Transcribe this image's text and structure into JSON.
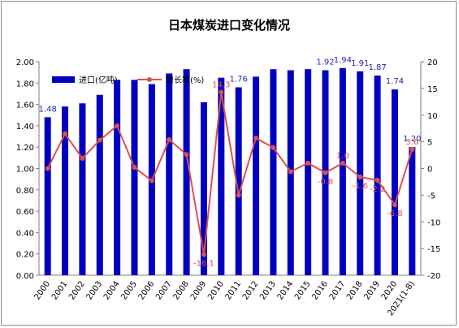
{
  "chart_data": {
    "type": "bar+line",
    "title": "日本煤炭进口变化情况",
    "categories": [
      "2000",
      "2001",
      "2002",
      "2003",
      "2004",
      "2005",
      "2006",
      "2007",
      "2008",
      "2009",
      "2010",
      "2011",
      "2012",
      "2013",
      "2014",
      "2015",
      "2016",
      "2017",
      "2018",
      "2019",
      "2020",
      "2021(1-8)"
    ],
    "series": [
      {
        "name": "进口(亿吨)",
        "type": "bar",
        "axis": "left",
        "color": "#0000c0",
        "values": [
          1.48,
          1.58,
          1.61,
          1.69,
          1.83,
          1.83,
          1.79,
          1.89,
          1.93,
          1.62,
          1.85,
          1.76,
          1.86,
          1.93,
          1.92,
          1.93,
          1.92,
          1.94,
          1.91,
          1.87,
          1.74,
          1.2
        ]
      },
      {
        "name": "增长率(%)",
        "type": "line",
        "axis": "right",
        "color": "#e0504b",
        "values": [
          0.0,
          6.5,
          1.9,
          5.3,
          8.0,
          0.2,
          -2.3,
          5.4,
          2.6,
          -16.1,
          14.3,
          -5.0,
          5.7,
          3.9,
          -0.6,
          1.0,
          -0.8,
          1.0,
          -1.6,
          -2.2,
          -6.8,
          3.6
        ]
      }
    ],
    "bar_labels": [
      {
        "index": 0,
        "text": "1.48"
      },
      {
        "index": 11,
        "text": "1.76"
      },
      {
        "index": 16,
        "text": "1.92"
      },
      {
        "index": 17,
        "text": "1.94"
      },
      {
        "index": 18,
        "text": "1.91"
      },
      {
        "index": 19,
        "text": "1.87"
      },
      {
        "index": 20,
        "text": "1.74"
      },
      {
        "index": 21,
        "text": "1.20"
      }
    ],
    "line_labels": [
      {
        "index": 9,
        "text": "-16.1"
      },
      {
        "index": 10,
        "text": "14.3"
      },
      {
        "index": 16,
        "text": "-0.8"
      },
      {
        "index": 17,
        "text": "1.0"
      },
      {
        "index": 18,
        "text": "-1.6"
      },
      {
        "index": 19,
        "text": "-2.2"
      },
      {
        "index": 20,
        "text": "-6.8"
      },
      {
        "index": 21,
        "text": "3.6"
      }
    ],
    "y_left": {
      "min": 0,
      "max": 2.0,
      "step": 0.2
    },
    "y_right": {
      "min": -20,
      "max": 20,
      "step": 5
    },
    "grid": false,
    "legend_position": "top-left"
  }
}
